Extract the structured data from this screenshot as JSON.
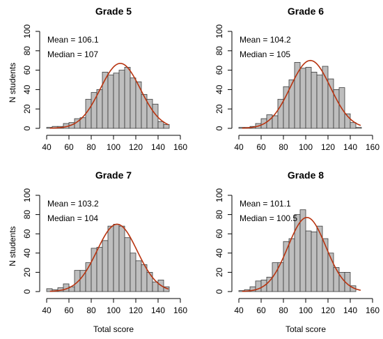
{
  "chart_data": [
    {
      "type": "bar",
      "title": "Grade 5",
      "xlabel": "",
      "ylabel": "N students",
      "xlim": [
        40,
        160
      ],
      "ylim": [
        0,
        100
      ],
      "x_ticks": [
        40,
        60,
        80,
        100,
        120,
        140,
        160
      ],
      "y_ticks": [
        0,
        20,
        40,
        60,
        80,
        100
      ],
      "bin_width": 5,
      "bin_starts": [
        40,
        45,
        50,
        55,
        60,
        65,
        70,
        75,
        80,
        85,
        90,
        95,
        100,
        105,
        110,
        115,
        120,
        125,
        130,
        135,
        140,
        145
      ],
      "values": [
        1,
        2,
        2,
        5,
        6,
        10,
        11,
        30,
        37,
        40,
        58,
        55,
        57,
        60,
        63,
        52,
        48,
        35,
        30,
        25,
        7,
        4
      ],
      "mean_label": "Mean = 106.1",
      "median_label": "Median = 107",
      "curve": {
        "mean": 106.1,
        "sd": 18,
        "peak": 67
      },
      "grid": false,
      "legend": "none"
    },
    {
      "type": "bar",
      "title": "Grade 6",
      "xlabel": "",
      "ylabel": "",
      "xlim": [
        40,
        160
      ],
      "ylim": [
        0,
        100
      ],
      "x_ticks": [
        40,
        60,
        80,
        100,
        120,
        140,
        160
      ],
      "y_ticks": [
        0,
        20,
        40,
        60,
        80,
        100
      ],
      "bin_width": 5,
      "bin_starts": [
        40,
        45,
        50,
        55,
        60,
        65,
        70,
        75,
        80,
        85,
        90,
        95,
        100,
        105,
        110,
        115,
        120,
        125,
        130,
        135,
        140,
        145
      ],
      "values": [
        1,
        1,
        2,
        5,
        10,
        14,
        13,
        30,
        43,
        50,
        68,
        62,
        63,
        58,
        55,
        64,
        51,
        40,
        42,
        15,
        6,
        1
      ],
      "mean_label": "Mean = 104.2",
      "median_label": "Median = 105",
      "curve": {
        "mean": 104.2,
        "sd": 18,
        "peak": 70
      },
      "grid": false,
      "legend": "none"
    },
    {
      "type": "bar",
      "title": "Grade 7",
      "xlabel": "Total score",
      "ylabel": "N students",
      "xlim": [
        40,
        160
      ],
      "ylim": [
        0,
        100
      ],
      "x_ticks": [
        40,
        60,
        80,
        100,
        120,
        140,
        160
      ],
      "y_ticks": [
        0,
        20,
        40,
        60,
        80,
        100
      ],
      "bin_width": 5,
      "bin_starts": [
        40,
        45,
        50,
        55,
        60,
        65,
        70,
        75,
        80,
        85,
        90,
        95,
        100,
        105,
        110,
        115,
        120,
        125,
        130,
        135,
        140,
        145
      ],
      "values": [
        3,
        2,
        4,
        8,
        5,
        22,
        22,
        30,
        45,
        46,
        53,
        68,
        70,
        68,
        56,
        40,
        32,
        28,
        20,
        10,
        12,
        5
      ],
      "mean_label": "Mean = 103.2",
      "median_label": "Median = 104",
      "curve": {
        "mean": 103.2,
        "sd": 18,
        "peak": 70
      },
      "grid": false,
      "legend": "none"
    },
    {
      "type": "bar",
      "title": "Grade 8",
      "xlabel": "Total score",
      "ylabel": "",
      "xlim": [
        40,
        160
      ],
      "ylim": [
        0,
        100
      ],
      "x_ticks": [
        40,
        60,
        80,
        100,
        120,
        140,
        160
      ],
      "y_ticks": [
        0,
        20,
        40,
        60,
        80,
        100
      ],
      "bin_width": 5,
      "bin_starts": [
        40,
        45,
        50,
        55,
        60,
        65,
        70,
        75,
        80,
        85,
        90,
        95,
        100,
        105,
        110,
        115,
        120,
        125,
        130,
        135,
        140
      ],
      "values": [
        1,
        2,
        5,
        11,
        12,
        15,
        30,
        30,
        52,
        55,
        80,
        85,
        63,
        62,
        68,
        55,
        40,
        25,
        20,
        20,
        6
      ],
      "mean_label": "Mean = 101.1",
      "median_label": "Median = 100.5",
      "curve": {
        "mean": 101.1,
        "sd": 17,
        "peak": 77
      },
      "grid": false,
      "legend": "none"
    }
  ],
  "colors": {
    "bar_fill": "#bebebe",
    "bar_stroke": "#3a3a3a",
    "curve": "#b8330f",
    "axis": "#000000"
  }
}
